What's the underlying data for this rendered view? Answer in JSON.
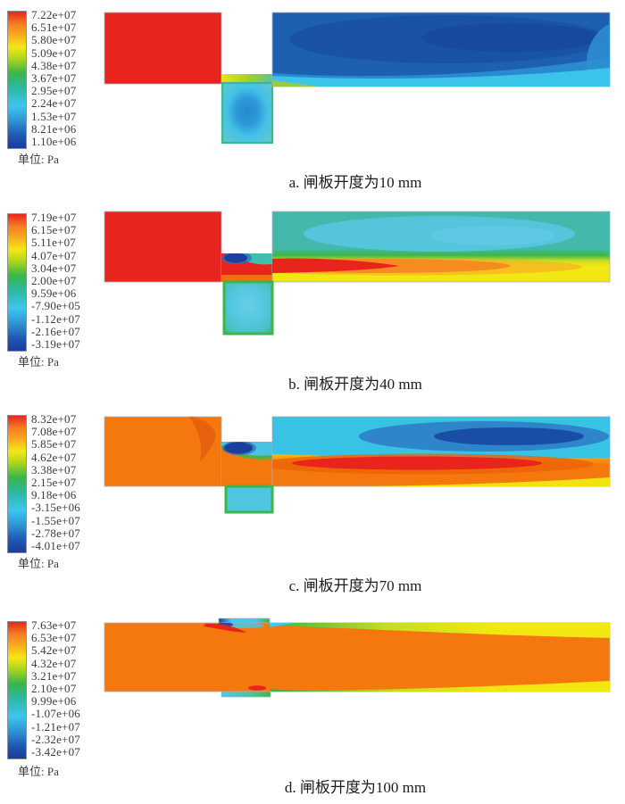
{
  "figure": {
    "panels": [
      {
        "id": "a",
        "caption": "a. 闸板开度为10 mm",
        "unit_label": "单位: Pa",
        "legend_values": [
          "7.22e+07",
          "6.51e+07",
          "5.80e+07",
          "5.09e+07",
          "4.38e+07",
          "3.67e+07",
          "2.95e+07",
          "2.24e+07",
          "1.53e+07",
          "8.21e+06",
          "1.10e+06"
        ]
      },
      {
        "id": "b",
        "caption": "b. 闸板开度为40 mm",
        "unit_label": "单位: Pa",
        "legend_values": [
          "7.19e+07",
          "6.15e+07",
          "5.11e+07",
          "4.07e+07",
          "3.04e+07",
          "2.00e+07",
          "9.59e+06",
          "-7.90e+05",
          "-1.12e+07",
          "-2.16e+07",
          "-3.19e+07"
        ]
      },
      {
        "id": "c",
        "caption": "c. 闸板开度为70 mm",
        "unit_label": "单位: Pa",
        "legend_values": [
          "8.32e+07",
          "7.08e+07",
          "5.85e+07",
          "4.62e+07",
          "3.38e+07",
          "2.15e+07",
          "9.18e+06",
          "-3.15e+06",
          "-1.55e+07",
          "-2.78e+07",
          "-4.01e+07"
        ]
      },
      {
        "id": "d",
        "caption": "d. 闸板开度为100 mm",
        "unit_label": "单位: Pa",
        "legend_values": [
          "7.63e+07",
          "6.53e+07",
          "5.42e+07",
          "4.32e+07",
          "3.21e+07",
          "2.10e+07",
          "9.99e+06",
          "-1.07e+06",
          "-1.21e+07",
          "-2.32e+07",
          "-3.42e+07"
        ]
      }
    ]
  },
  "chart_data": [
    {
      "type": "heatmap",
      "title": "a. 闸板开度为10 mm",
      "field": "gate valve static pressure contour, opening 10 mm",
      "unit": "Pa",
      "colorbar_tick_labels": [
        "7.22e+07",
        "6.51e+07",
        "5.80e+07",
        "5.09e+07",
        "4.38e+07",
        "3.67e+07",
        "2.95e+07",
        "2.24e+07",
        "1.53e+07",
        "8.21e+06",
        "1.10e+06"
      ],
      "colorbar_ticks_pa": [
        72200000,
        65100000,
        58000000,
        50900000,
        43800000,
        36700000,
        29500000,
        22400000,
        15300000,
        8210000,
        1100000
      ],
      "range_pa": [
        1100000,
        72200000
      ],
      "colormap": "rainbow (red=high, blue=low)",
      "regions": {
        "inlet_pipe": "uniform red ≈7.2e7 Pa",
        "throttle_jet": "thin yellow-green jet ≈3e7-4e7 Pa under the gate",
        "gate_cavity": "teal ≈2e7 Pa with blue core ≈1e7 Pa",
        "outlet_pipe": "blue ≈1e6-8e6 Pa, darker recirculation ellipse upper right, cyan layer ≈1.5e7 Pa along bottom"
      }
    },
    {
      "type": "heatmap",
      "title": "b. 闸板开度为40 mm",
      "field": "gate valve static pressure contour, opening 40 mm",
      "unit": "Pa",
      "colorbar_tick_labels": [
        "7.19e+07",
        "6.15e+07",
        "5.11e+07",
        "4.07e+07",
        "3.04e+07",
        "2.00e+07",
        "9.59e+06",
        "-7.90e+05",
        "-1.12e+07",
        "-2.16e+07",
        "-3.19e+07"
      ],
      "colorbar_ticks_pa": [
        71900000,
        61500000,
        51100000,
        40700000,
        30400000,
        20000000,
        9590000,
        -790000,
        -11200000,
        -21600000,
        -31900000
      ],
      "range_pa": [
        -31900000,
        71900000
      ],
      "colormap": "rainbow (red=high, blue=low)",
      "regions": {
        "inlet_pipe": "uniform red ≈7.2e7 Pa",
        "under_gate": "dark blue separation bubble ≈-3e7 Pa at gate lip, red jet below",
        "gate_cavity": "green rim with cyan core ≈0 Pa",
        "outlet_pipe": "teal top ≈1e7 Pa with light-blue ellipse, green/yellow shear layer, red-orange jet ≈5e7-7e7 Pa decaying downstream, yellow bottom"
      }
    },
    {
      "type": "heatmap",
      "title": "c. 闸板开度为70 mm",
      "field": "gate valve static pressure contour, opening 70 mm",
      "unit": "Pa",
      "colorbar_tick_labels": [
        "8.32e+07",
        "7.08e+07",
        "5.85e+07",
        "4.62e+07",
        "3.38e+07",
        "2.15e+07",
        "9.18e+06",
        "-3.15e+06",
        "-1.55e+07",
        "-2.78e+07",
        "-4.01e+07"
      ],
      "colorbar_ticks_pa": [
        83200000,
        70800000,
        58500000,
        46200000,
        33800000,
        21500000,
        9180000,
        -3150000,
        -15500000,
        -27800000,
        -40100000
      ],
      "range_pa": [
        -40100000,
        83200000
      ],
      "colormap": "rainbow (red=high, blue=low)",
      "regions": {
        "inlet_pipe": "orange ≈3e7-4e7 Pa with darker tongue near gate",
        "under_gate": "dark blue separation bubble ≈-3e7 Pa at gate lip",
        "gate_cavity": "green rim, cyan core ≈0 Pa",
        "outlet_pipe": "cyan top ≈1e7 Pa with nested blue/dark-blue recirculation ellipses ≈-2e7 Pa upper right, orange core with elongated red jet ≈8e7 Pa, yellow along lower right edge"
      }
    },
    {
      "type": "heatmap",
      "title": "d. 闸板开度为100 mm",
      "field": "gate valve static pressure contour, opening 100 mm (fully open)",
      "unit": "Pa",
      "colorbar_tick_labels": [
        "7.63e+07",
        "6.53e+07",
        "5.42e+07",
        "4.32e+07",
        "3.21e+07",
        "2.10e+07",
        "9.99e+06",
        "-1.07e+06",
        "-1.21e+07",
        "-2.32e+07",
        "-3.42e+07"
      ],
      "colorbar_ticks_pa": [
        76300000,
        65300000,
        54200000,
        43200000,
        32100000,
        21000000,
        9990000,
        -1070000,
        -12100000,
        -23200000,
        -34200000
      ],
      "range_pa": [
        -34200000,
        76300000
      ],
      "colormap": "rainbow (red=high, blue=low)",
      "regions": {
        "pipe": "nearly uniform orange ≈3e7 Pa through full bore",
        "gate_slot_recesses": "small cyan/blue low-pressure pockets at top and bottom slot, tiny red spots at slot edges",
        "walls": "green-to-yellow boundary layers widening along top and bottom walls downstream"
      }
    }
  ]
}
